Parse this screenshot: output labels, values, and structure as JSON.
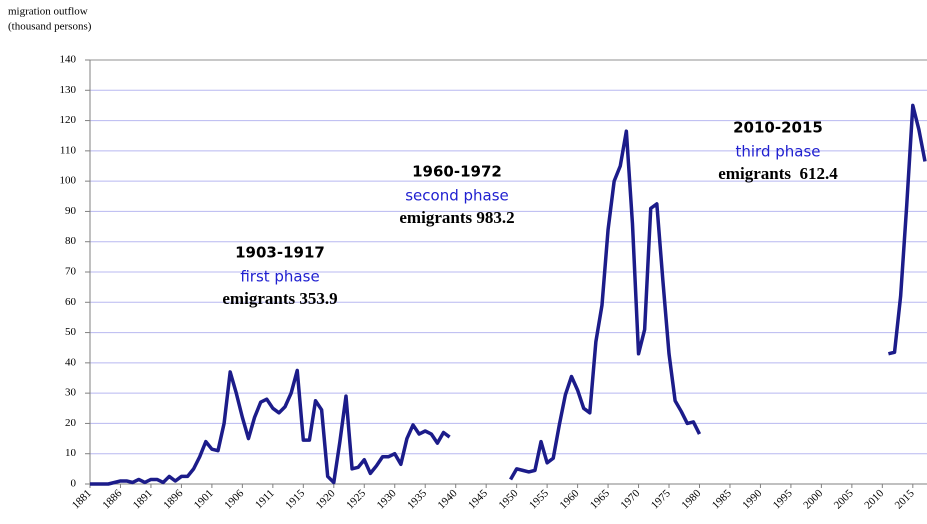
{
  "chart_data": {
    "type": "line",
    "y_label_lines": [
      "migration outflow",
      "(thousand persons)"
    ],
    "categories": [
      "1881",
      null,
      null,
      null,
      null,
      "1886",
      null,
      null,
      null,
      null,
      "1891",
      null,
      null,
      null,
      null,
      "1896",
      null,
      null,
      null,
      null,
      "1901",
      null,
      null,
      null,
      null,
      "1906",
      null,
      null,
      null,
      null,
      "1911",
      null,
      null,
      null,
      null,
      "1915",
      null,
      null,
      null,
      null,
      "1920",
      null,
      null,
      null,
      null,
      "1925",
      null,
      null,
      null,
      null,
      "1930",
      null,
      null,
      null,
      null,
      "1935",
      null,
      null,
      null,
      null,
      "1940",
      null,
      null,
      null,
      null,
      "1945",
      null,
      null,
      null,
      null,
      "1950",
      null,
      null,
      null,
      null,
      "1955",
      null,
      null,
      null,
      null,
      "1960",
      null,
      null,
      null,
      null,
      "1965",
      null,
      null,
      null,
      null,
      "1970",
      null,
      null,
      null,
      null,
      "1975",
      null,
      null,
      null,
      null,
      "1980",
      null,
      null,
      null,
      null,
      "1985",
      null,
      null,
      null,
      null,
      "1990",
      null,
      null,
      null,
      null,
      "1995",
      null,
      null,
      null,
      null,
      "2000",
      null,
      null,
      null,
      null,
      "2005",
      null,
      null,
      null,
      null,
      "2010",
      null,
      null,
      null,
      null,
      "2015",
      null,
      null
    ],
    "series": [
      {
        "color": "#1c1c8a",
        "values": [
          0,
          0,
          0,
          0,
          0.5,
          1,
          1,
          0.5,
          1.5,
          0.5,
          1.5,
          1.5,
          0.5,
          2.5,
          1,
          2.5,
          2.5,
          5,
          9,
          14,
          11.5,
          11,
          20,
          37,
          30,
          22,
          15,
          22,
          27,
          28,
          25,
          23.5,
          25.5,
          30,
          37.5,
          14.5,
          14.5,
          27.5,
          24.5,
          2.5,
          0.5,
          14,
          29,
          5,
          5.5,
          8,
          3.5,
          6,
          9,
          9,
          10,
          6.5,
          15,
          19.5,
          16.5,
          17.5,
          16.5,
          13.5,
          17,
          15.5,
          null,
          null,
          null,
          null,
          null,
          null,
          null,
          null,
          null,
          1.5,
          5,
          4.5,
          4,
          4.5,
          14,
          7,
          8.5,
          19.5,
          29.5,
          35.5,
          31,
          25,
          23.5,
          47,
          59,
          84,
          100,
          105,
          116.5,
          86,
          43,
          51,
          91,
          92.5,
          67,
          43,
          27.5,
          24,
          20,
          20.5,
          16.5,
          null,
          null,
          null,
          null,
          null,
          null,
          null,
          null,
          null,
          null,
          null,
          null,
          null,
          null,
          null,
          null,
          null,
          null,
          null,
          null,
          null,
          null,
          null,
          null,
          null,
          null,
          null,
          null,
          null,
          null,
          43,
          43.5,
          62,
          92,
          125,
          117,
          106.5
        ]
      }
    ],
    "ylim": [
      0,
      140
    ],
    "yticks": [
      0,
      10,
      20,
      30,
      40,
      50,
      60,
      70,
      80,
      90,
      100,
      110,
      120,
      130,
      140
    ],
    "grid": true,
    "annotations": [
      {
        "period": "1903-1917",
        "phase": "first phase",
        "emigrants": "emigrants 353.9"
      },
      {
        "period": "1960-1972",
        "phase": "second phase",
        "emigrants": "emigrants 983.2"
      },
      {
        "period": "2010-2015",
        "phase": "third phase",
        "emigrants": "emigrants  612.4"
      }
    ]
  }
}
